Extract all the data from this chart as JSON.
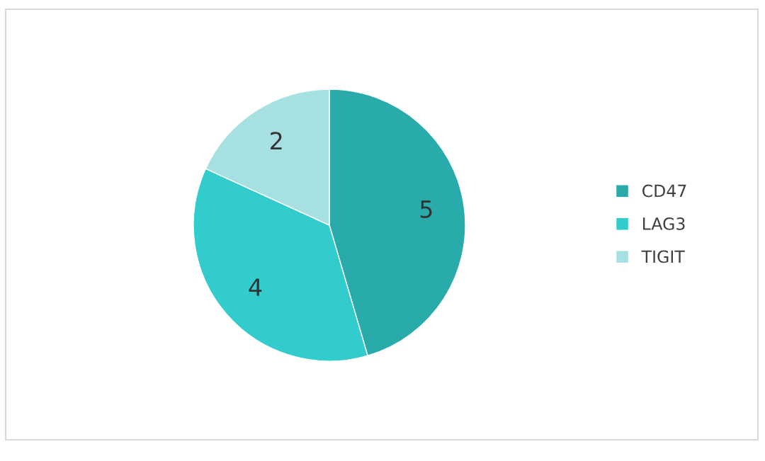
{
  "chart_data": {
    "type": "pie",
    "categories": [
      "CD47",
      "LAG3",
      "TIGIT"
    ],
    "values": [
      5,
      4,
      2
    ],
    "colors": [
      "#2aabab",
      "#33cccc",
      "#a6e0e0"
    ],
    "data_labels": true,
    "legend": "right"
  }
}
